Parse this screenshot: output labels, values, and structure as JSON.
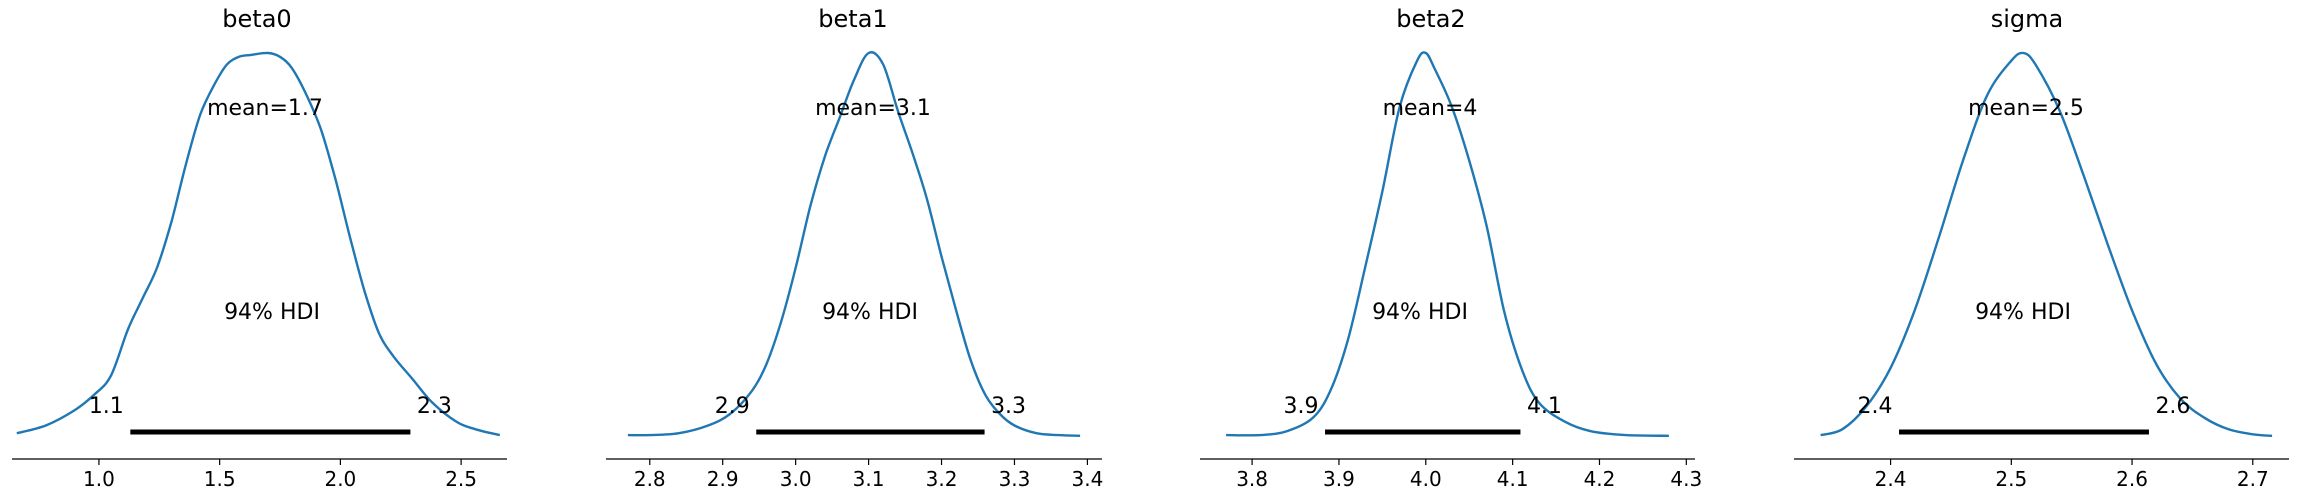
{
  "chart_data": [
    {
      "type": "line",
      "title": "beta0",
      "mean_label": "mean=1.7",
      "hdi_label": "94% HDI",
      "hdi": {
        "low": 1.13,
        "high": 2.29,
        "low_label": "1.1",
        "high_label": "2.3"
      },
      "xlim": [
        0.64,
        2.69
      ],
      "ticks": [
        1.0,
        1.5,
        2.0,
        2.5
      ],
      "tick_labels": [
        "1.0",
        "1.5",
        "2.0",
        "2.5"
      ],
      "density": {
        "x": [
          0.66,
          0.78,
          0.9,
          0.98,
          1.05,
          1.12,
          1.18,
          1.24,
          1.3,
          1.36,
          1.42,
          1.48,
          1.53,
          1.58,
          1.63,
          1.7,
          1.75,
          1.8,
          1.86,
          1.92,
          1.98,
          2.04,
          2.1,
          2.16,
          2.22,
          2.3,
          2.38,
          2.48,
          2.56,
          2.66
        ],
        "y": [
          0.01,
          0.03,
          0.07,
          0.11,
          0.16,
          0.28,
          0.36,
          0.44,
          0.56,
          0.71,
          0.84,
          0.92,
          0.97,
          0.99,
          0.995,
          1.0,
          0.99,
          0.96,
          0.89,
          0.8,
          0.67,
          0.52,
          0.38,
          0.27,
          0.21,
          0.15,
          0.09,
          0.04,
          0.02,
          0.005
        ]
      }
    },
    {
      "type": "line",
      "title": "beta1",
      "mean_label": "mean=3.1",
      "hdi_label": "94% HDI",
      "hdi": {
        "low": 2.946,
        "high": 3.259,
        "low_label": "2.9",
        "high_label": "3.3"
      },
      "xlim": [
        2.74,
        3.42
      ],
      "ticks": [
        2.8,
        2.9,
        3.0,
        3.1,
        3.2,
        3.3,
        3.4
      ],
      "tick_labels": [
        "2.8",
        "2.9",
        "3.0",
        "3.1",
        "3.2",
        "3.3",
        "3.4"
      ],
      "density": {
        "x": [
          2.77,
          2.8,
          2.84,
          2.88,
          2.91,
          2.94,
          2.96,
          2.98,
          3.0,
          3.02,
          3.04,
          3.06,
          3.08,
          3.1,
          3.12,
          3.14,
          3.16,
          3.18,
          3.2,
          3.22,
          3.24,
          3.26,
          3.28,
          3.3,
          3.33,
          3.36,
          3.39
        ],
        "y": [
          0.005,
          0.005,
          0.01,
          0.03,
          0.06,
          0.12,
          0.19,
          0.3,
          0.44,
          0.6,
          0.73,
          0.83,
          0.93,
          1.0,
          0.97,
          0.85,
          0.74,
          0.62,
          0.47,
          0.33,
          0.2,
          0.11,
          0.06,
          0.03,
          0.01,
          0.005,
          0.003
        ]
      }
    },
    {
      "type": "line",
      "title": "beta2",
      "mean_label": "mean=4",
      "hdi_label": "94% HDI",
      "hdi": {
        "low": 3.884,
        "high": 4.109,
        "low_label": "3.9",
        "high_label": "4.1"
      },
      "xlim": [
        3.74,
        4.31
      ],
      "ticks": [
        3.8,
        3.9,
        4.0,
        4.1,
        4.2,
        4.3
      ],
      "tick_labels": [
        "3.8",
        "3.9",
        "4.0",
        "4.1",
        "4.2",
        "4.3"
      ],
      "density": {
        "x": [
          3.77,
          3.81,
          3.84,
          3.87,
          3.89,
          3.91,
          3.93,
          3.95,
          3.97,
          3.99,
          4.0,
          4.01,
          4.03,
          4.05,
          4.07,
          4.09,
          4.11,
          4.13,
          4.16,
          4.19,
          4.23,
          4.28
        ],
        "y": [
          0.005,
          0.005,
          0.015,
          0.05,
          0.12,
          0.25,
          0.44,
          0.64,
          0.86,
          0.98,
          1.0,
          0.96,
          0.86,
          0.72,
          0.55,
          0.33,
          0.18,
          0.09,
          0.04,
          0.015,
          0.005,
          0.003
        ]
      }
    },
    {
      "type": "line",
      "title": "sigma",
      "mean_label": "mean=2.5",
      "hdi_label": "94% HDI",
      "hdi": {
        "low": 2.407,
        "high": 2.614,
        "low_label": "2.4",
        "high_label": "2.6"
      },
      "xlim": [
        2.32,
        2.73
      ],
      "ticks": [
        2.4,
        2.5,
        2.6,
        2.7
      ],
      "tick_labels": [
        "2.4",
        "2.5",
        "2.6",
        "2.7"
      ],
      "density": {
        "x": [
          2.342,
          2.36,
          2.38,
          2.4,
          2.42,
          2.44,
          2.46,
          2.48,
          2.5,
          2.51,
          2.52,
          2.54,
          2.56,
          2.58,
          2.6,
          2.62,
          2.64,
          2.66,
          2.68,
          2.7,
          2.716
        ],
        "y": [
          0.005,
          0.02,
          0.08,
          0.18,
          0.33,
          0.52,
          0.72,
          0.89,
          0.98,
          1.0,
          0.97,
          0.85,
          0.68,
          0.5,
          0.33,
          0.19,
          0.1,
          0.05,
          0.02,
          0.007,
          0.003
        ]
      }
    }
  ]
}
